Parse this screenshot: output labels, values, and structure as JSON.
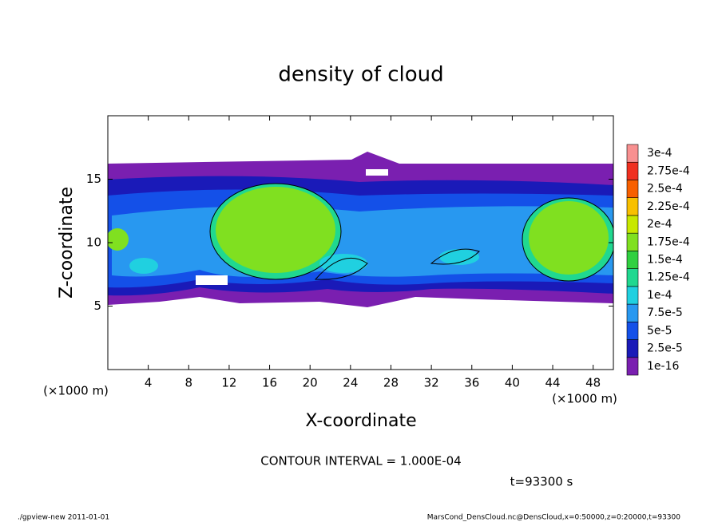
{
  "chart_data": {
    "type": "contour",
    "title": "density of cloud",
    "x_label": "X-coordinate",
    "y_label": "Z-coordinate",
    "x_unit_left": "(×1000 m)",
    "x_unit_right": "(×1000 m)",
    "xlim": [
      0,
      50
    ],
    "xticks": [
      4,
      8,
      12,
      16,
      20,
      24,
      28,
      32,
      36,
      40,
      44,
      48
    ],
    "ylim": [
      0,
      20
    ],
    "yticks": [
      5,
      10,
      15
    ],
    "colorbar": {
      "levels": [
        {
          "value": 1e-16,
          "label": "1e-16"
        },
        {
          "value": 2.5e-05,
          "label": "2.5e-5"
        },
        {
          "value": 5e-05,
          "label": "5e-5"
        },
        {
          "value": 7.5e-05,
          "label": "7.5e-5"
        },
        {
          "value": 0.0001,
          "label": "1e-4"
        },
        {
          "value": 0.000125,
          "label": "1.25e-4"
        },
        {
          "value": 0.00015,
          "label": "1.5e-4"
        },
        {
          "value": 0.000175,
          "label": "1.75e-4"
        },
        {
          "value": 0.0002,
          "label": "2e-4"
        },
        {
          "value": 0.000225,
          "label": "2.25e-4"
        },
        {
          "value": 0.00025,
          "label": "2.5e-4"
        },
        {
          "value": 0.000275,
          "label": "2.75e-4"
        },
        {
          "value": 0.0003,
          "label": "3e-4"
        }
      ],
      "colors": [
        "#7a1fb0",
        "#1a1ab8",
        "#1450e8",
        "#2898f0",
        "#20d0e0",
        "#20d890",
        "#30d040",
        "#80e020",
        "#c8e800",
        "#f8c000",
        "#f86000",
        "#f03020",
        "#f89090"
      ]
    },
    "contour_interval": "CONTOUR INTERVAL = 1.000E-04",
    "time_label": "t=93300 s",
    "footer_left": "./gpview-new  2011-01-01",
    "footer_right": "MarsCond_DensCloud.nc@DensCloud,x=0:50000,z=0:20000,t=93300"
  }
}
